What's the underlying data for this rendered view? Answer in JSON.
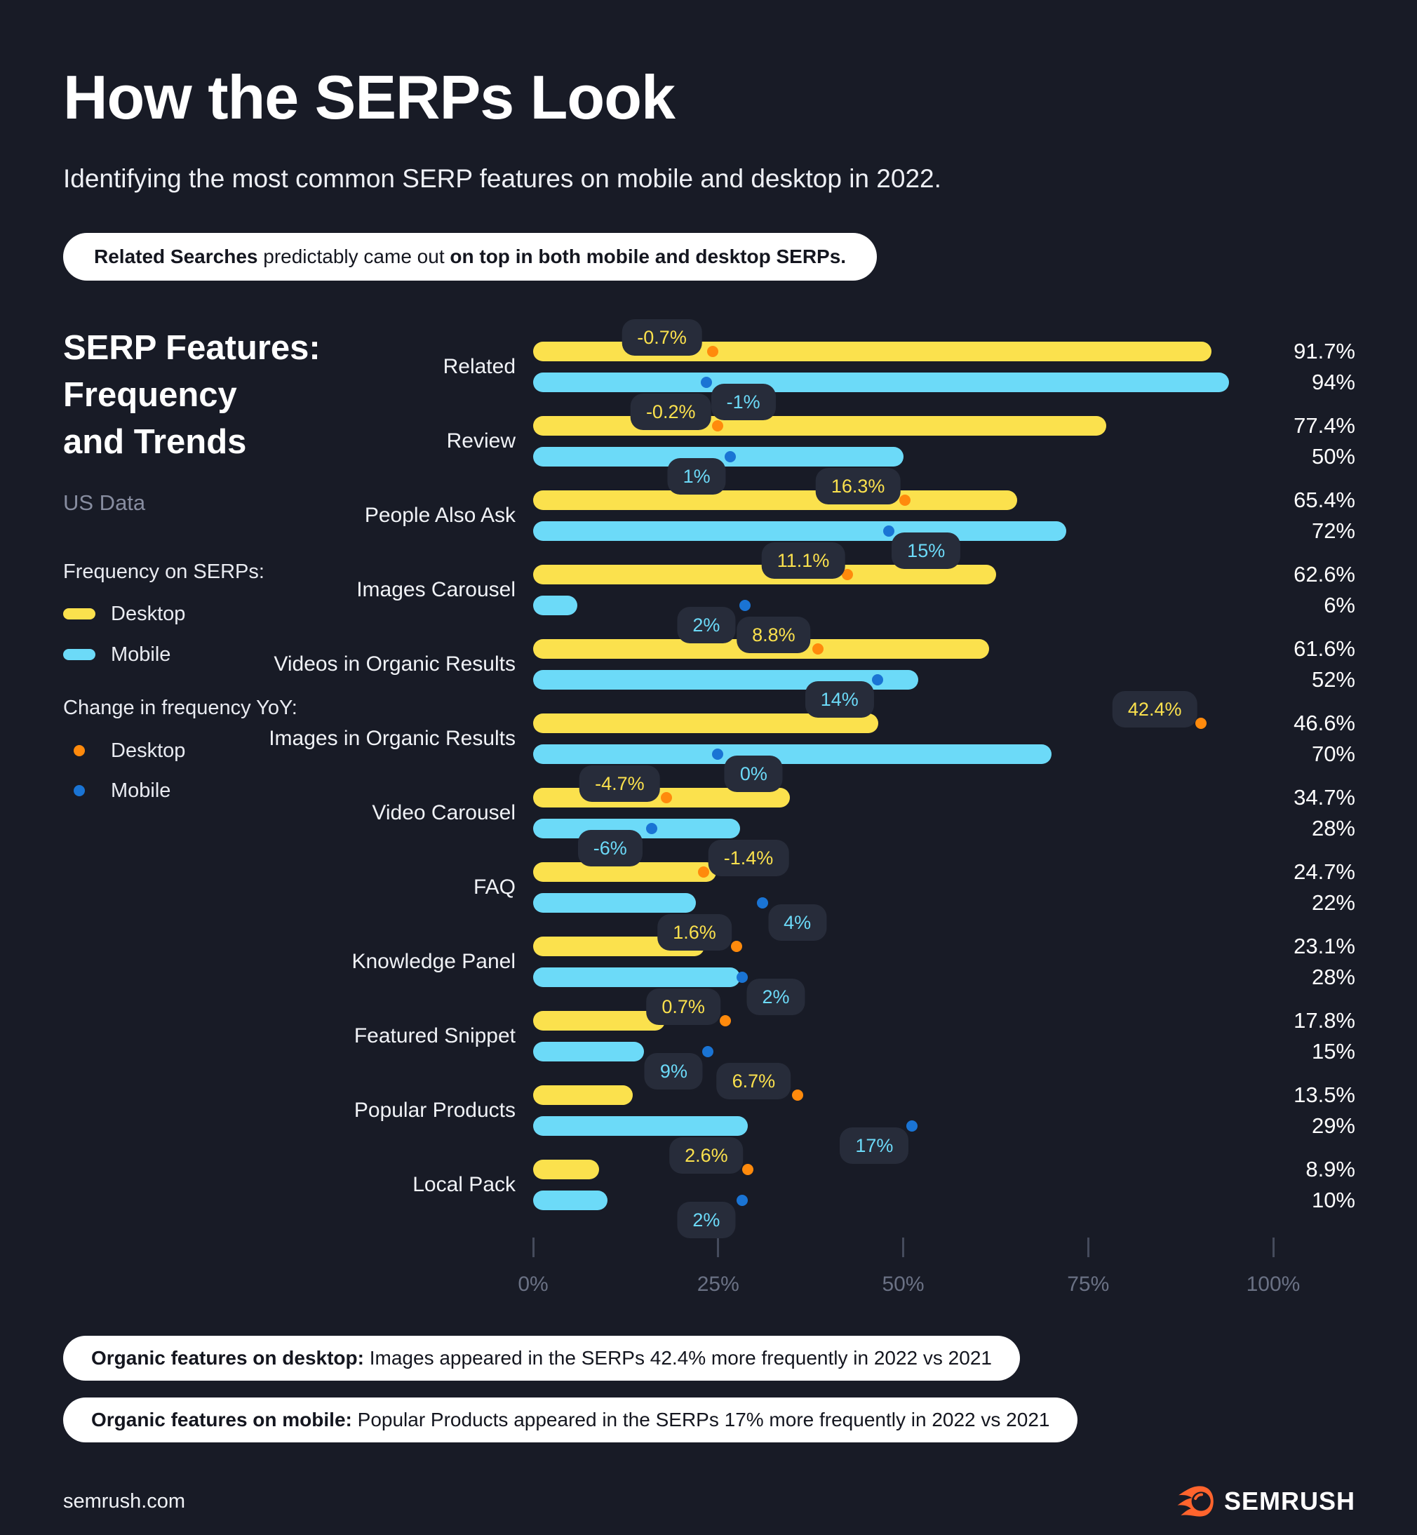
{
  "page": {
    "title": "How the SERPs Look",
    "subtitle": "Identifying the most common SERP features on mobile and desktop in 2022.",
    "callout": {
      "bold1": "Related Searches",
      "regular": " predictably came out ",
      "bold2": "on top in both mobile and desktop SERPs."
    },
    "footer": {
      "site": "semrush.com",
      "brand": "SEMRUSH"
    }
  },
  "panel": {
    "heading_lines": [
      "SERP Features:",
      "Frequency",
      "and Trends"
    ],
    "data_note": "US Data",
    "legend_frequency_title": "Frequency on SERPs:",
    "legend_frequency": [
      {
        "label": "Desktop",
        "color": "#fbe14d"
      },
      {
        "label": "Mobile",
        "color": "#6cdaf8"
      }
    ],
    "legend_change_title": "Change in frequency YoY:",
    "legend_change": [
      {
        "label": "Desktop",
        "color": "#ff8a0c"
      },
      {
        "label": "Mobile",
        "color": "#1a74d4"
      }
    ]
  },
  "insights": [
    {
      "bold": "Organic features on desktop:",
      "text": " Images appeared in the SERPs 42.4% more frequently in 2022 vs 2021"
    },
    {
      "bold": "Organic features on mobile:",
      "text": " Popular Products appeared in the SERPs 17% more frequently in 2022 vs 2021"
    }
  ],
  "chart_data": {
    "type": "bar",
    "orientation": "horizontal",
    "title": "SERP Features: Frequency and Trends",
    "subtitle": "US Data",
    "xlim": [
      0,
      100
    ],
    "axis_ticks": [
      "0%",
      "25%",
      "50%",
      "75%",
      "100%"
    ],
    "series_names": [
      "Desktop",
      "Mobile"
    ],
    "colors": {
      "desktop_bar": "#fbe14d",
      "mobile_bar": "#6cdaf8",
      "desktop_change_dot": "#ff8a0c",
      "mobile_change_dot": "#1a74d4",
      "badge_bg": "#272c3a",
      "background": "#181b26"
    },
    "rows": [
      {
        "feature": "Related",
        "desktop": 91.7,
        "mobile": 94,
        "desktop_label": "91.7%",
        "mobile_label": "94%",
        "desktop_yoy": "-0.7%",
        "mobile_yoy": "-1%",
        "d_dot_pct": 24.3,
        "d_badge_pct": 17.4,
        "m_dot_pct": 23.4,
        "m_badge_pct": 28.4
      },
      {
        "feature": "Review",
        "desktop": 77.4,
        "mobile": 50,
        "desktop_label": "77.4%",
        "mobile_label": "50%",
        "desktop_yoy": "-0.2%",
        "mobile_yoy": "1%",
        "d_dot_pct": 24.9,
        "d_badge_pct": 18.6,
        "m_dot_pct": 26.6,
        "m_badge_pct": 22.1
      },
      {
        "feature": "People Also Ask",
        "desktop": 65.4,
        "mobile": 72,
        "desktop_label": "65.4%",
        "mobile_label": "72%",
        "desktop_yoy": "16.3%",
        "mobile_yoy": "15%",
        "d_dot_pct": 50.2,
        "d_badge_pct": 43.9,
        "m_dot_pct": 48.1,
        "m_badge_pct": 53.1
      },
      {
        "feature": "Images Carousel",
        "desktop": 62.6,
        "mobile": 6,
        "desktop_label": "62.6%",
        "mobile_label": "6%",
        "desktop_yoy": "11.1%",
        "mobile_yoy": "2%",
        "d_dot_pct": 42.5,
        "d_badge_pct": 36.5,
        "m_dot_pct": 28.6,
        "m_badge_pct": 23.4
      },
      {
        "feature": "Videos in Organic Results",
        "desktop": 61.6,
        "mobile": 52,
        "desktop_label": "61.6%",
        "mobile_label": "52%",
        "desktop_yoy": "8.8%",
        "mobile_yoy": "14%",
        "d_dot_pct": 38.5,
        "d_badge_pct": 32.5,
        "m_dot_pct": 46.5,
        "m_badge_pct": 41.4
      },
      {
        "feature": "Images in Organic Results",
        "desktop": 46.6,
        "mobile": 70,
        "desktop_label": "46.6%",
        "mobile_label": "70%",
        "desktop_yoy": "42.4%",
        "mobile_yoy": "0%",
        "d_dot_pct": 90.2,
        "d_badge_pct": 84.0,
        "m_dot_pct": 24.9,
        "m_badge_pct": 29.8
      },
      {
        "feature": "Video Carousel",
        "desktop": 34.7,
        "mobile": 28,
        "desktop_label": "34.7%",
        "mobile_label": "28%",
        "desktop_yoy": "-4.7%",
        "mobile_yoy": "-6%",
        "d_dot_pct": 18.0,
        "d_badge_pct": 11.7,
        "m_dot_pct": 16.0,
        "m_badge_pct": 10.4
      },
      {
        "feature": "FAQ",
        "desktop": 24.7,
        "mobile": 22,
        "desktop_label": "24.7%",
        "mobile_label": "22%",
        "desktop_yoy": "-1.4%",
        "mobile_yoy": "4%",
        "d_dot_pct": 23.0,
        "d_badge_pct": 29.1,
        "m_dot_pct": 31.0,
        "m_badge_pct": 35.7
      },
      {
        "feature": "Knowledge Panel",
        "desktop": 23.1,
        "mobile": 28,
        "desktop_label": "23.1%",
        "mobile_label": "28%",
        "desktop_yoy": "1.6%",
        "mobile_yoy": "2%",
        "d_dot_pct": 27.5,
        "d_badge_pct": 21.8,
        "m_dot_pct": 28.2,
        "m_badge_pct": 32.8
      },
      {
        "feature": "Featured Snippet",
        "desktop": 17.8,
        "mobile": 15,
        "desktop_label": "17.8%",
        "mobile_label": "15%",
        "desktop_yoy": "0.7%",
        "mobile_yoy": "9%",
        "d_dot_pct": 26.0,
        "d_badge_pct": 20.3,
        "m_dot_pct": 23.6,
        "m_badge_pct": 19.0
      },
      {
        "feature": "Popular Products",
        "desktop": 13.5,
        "mobile": 29,
        "desktop_label": "13.5%",
        "mobile_label": "29%",
        "desktop_yoy": "6.7%",
        "mobile_yoy": "17%",
        "d_dot_pct": 35.7,
        "d_badge_pct": 29.8,
        "m_dot_pct": 51.2,
        "m_badge_pct": 46.1
      },
      {
        "feature": "Local Pack",
        "desktop": 8.9,
        "mobile": 10,
        "desktop_label": "8.9%",
        "mobile_label": "10%",
        "desktop_yoy": "2.6%",
        "mobile_yoy": "2%",
        "d_dot_pct": 29.0,
        "d_badge_pct": 23.4,
        "m_dot_pct": 28.2,
        "m_badge_pct": 23.4
      }
    ]
  }
}
